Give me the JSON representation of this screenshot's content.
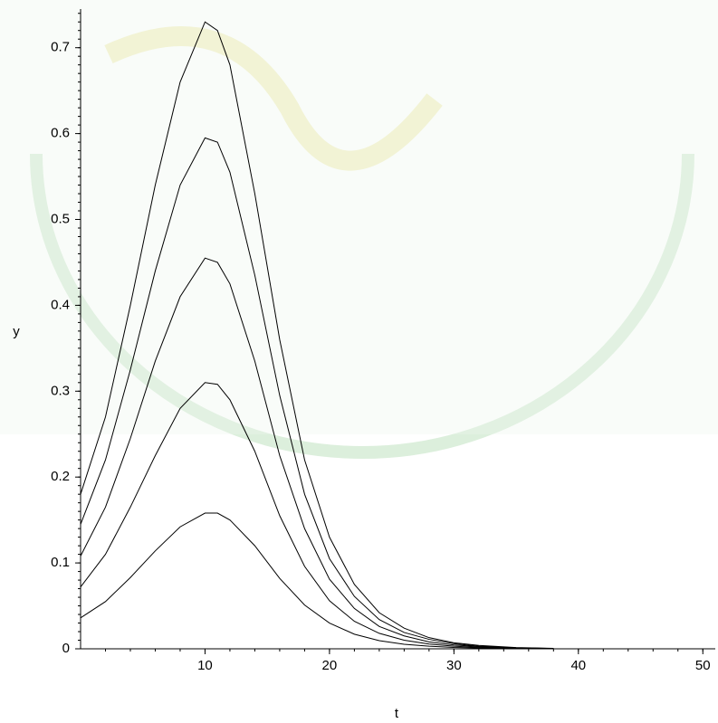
{
  "chart_data": {
    "type": "line",
    "x_label": "t",
    "y_label": "y",
    "x": [
      0,
      2,
      4,
      6,
      8,
      10,
      11,
      12,
      14,
      16,
      18,
      20,
      22,
      24,
      26,
      28,
      30,
      32,
      35,
      38
    ],
    "series": [
      {
        "color": "#000000",
        "values": [
          0.18,
          0.27,
          0.4,
          0.54,
          0.66,
          0.73,
          0.72,
          0.68,
          0.53,
          0.36,
          0.22,
          0.13,
          0.075,
          0.042,
          0.024,
          0.013,
          0.007,
          0.004,
          0.0015,
          0.0005
        ]
      },
      {
        "color": "#000000",
        "values": [
          0.145,
          0.22,
          0.325,
          0.44,
          0.54,
          0.595,
          0.59,
          0.555,
          0.435,
          0.295,
          0.18,
          0.105,
          0.061,
          0.034,
          0.019,
          0.011,
          0.006,
          0.003,
          0.0012,
          0.0004
        ]
      },
      {
        "color": "#000000",
        "values": [
          0.108,
          0.165,
          0.245,
          0.335,
          0.41,
          0.455,
          0.45,
          0.425,
          0.335,
          0.225,
          0.14,
          0.081,
          0.047,
          0.026,
          0.015,
          0.008,
          0.0045,
          0.0025,
          0.001,
          0.0003
        ]
      },
      {
        "color": "#000000",
        "values": [
          0.072,
          0.11,
          0.165,
          0.225,
          0.28,
          0.31,
          0.308,
          0.29,
          0.23,
          0.155,
          0.096,
          0.056,
          0.032,
          0.018,
          0.01,
          0.0055,
          0.003,
          0.0017,
          0.0007,
          0.0002
        ]
      },
      {
        "color": "#000000",
        "values": [
          0.036,
          0.055,
          0.083,
          0.114,
          0.142,
          0.158,
          0.158,
          0.15,
          0.12,
          0.082,
          0.051,
          0.03,
          0.017,
          0.0095,
          0.0053,
          0.003,
          0.0016,
          0.0009,
          0.0004,
          0.0001
        ]
      }
    ],
    "xlim": [
      0,
      51
    ],
    "xticks": [
      10,
      20,
      30,
      40,
      50
    ],
    "ylim": [
      0,
      0.745
    ],
    "yticks": [
      0,
      0.1,
      0.2,
      0.3,
      0.4,
      0.5,
      0.6,
      0.7
    ]
  }
}
